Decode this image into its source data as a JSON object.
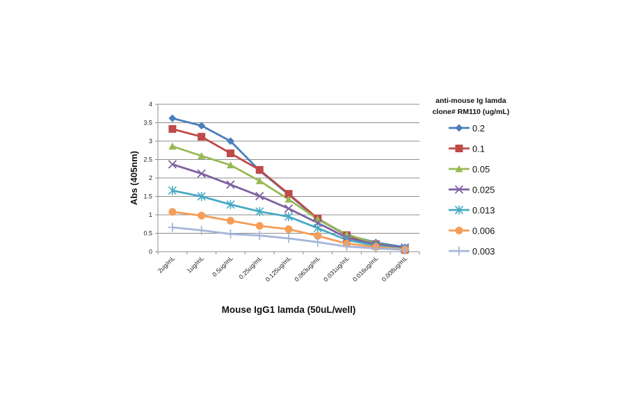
{
  "chart_data": {
    "type": "line",
    "xlabel": "Mouse IgG1 lamda (50uL/well)",
    "ylabel": "Abs (405nm)",
    "ylim": [
      0,
      4
    ],
    "yticks": [
      "0",
      "0.5",
      "1",
      "1.5",
      "2",
      "2.5",
      "3",
      "3.5",
      "4"
    ],
    "grid": true,
    "legend_position": "right",
    "legend_title": [
      "anti-mouse Ig lamda",
      "clone# RM110 (ug/mL)"
    ],
    "categories": [
      "2ug/mL",
      "1ug/mL",
      "0.5ug/mL",
      "0.25ug/mL",
      "0.125ug/mL",
      "0.063ug/mL",
      "0.031ug/mL",
      "0.016ug/mL",
      "0.008ug/mL"
    ],
    "series": [
      {
        "name": "0.2",
        "color": "#4a7ebb",
        "marker": "diamond",
        "values": [
          3.62,
          3.42,
          3.0,
          2.2,
          1.55,
          0.88,
          0.45,
          0.25,
          0.12
        ]
      },
      {
        "name": "0.1",
        "color": "#be4b48",
        "marker": "square",
        "values": [
          3.33,
          3.12,
          2.67,
          2.22,
          1.57,
          0.9,
          0.45,
          0.2,
          0.05
        ]
      },
      {
        "name": "0.05",
        "color": "#98b954",
        "marker": "triangle",
        "values": [
          2.86,
          2.6,
          2.35,
          1.92,
          1.42,
          0.88,
          0.47,
          0.22,
          0.1
        ]
      },
      {
        "name": "0.025",
        "color": "#7d60a0",
        "marker": "x",
        "values": [
          2.37,
          2.12,
          1.82,
          1.51,
          1.17,
          0.78,
          0.38,
          0.2,
          0.11
        ]
      },
      {
        "name": "0.013",
        "color": "#46aac5",
        "marker": "star",
        "values": [
          1.66,
          1.5,
          1.28,
          1.09,
          0.95,
          0.64,
          0.32,
          0.16,
          0.08
        ]
      },
      {
        "name": "0.006",
        "color": "#f59d56",
        "marker": "circle",
        "values": [
          1.08,
          0.98,
          0.84,
          0.7,
          0.61,
          0.43,
          0.22,
          0.13,
          0.06
        ]
      },
      {
        "name": "0.003",
        "color": "#a5b6d9",
        "marker": "plus",
        "values": [
          0.66,
          0.58,
          0.48,
          0.44,
          0.36,
          0.26,
          0.14,
          0.09,
          0.05
        ]
      }
    ]
  }
}
